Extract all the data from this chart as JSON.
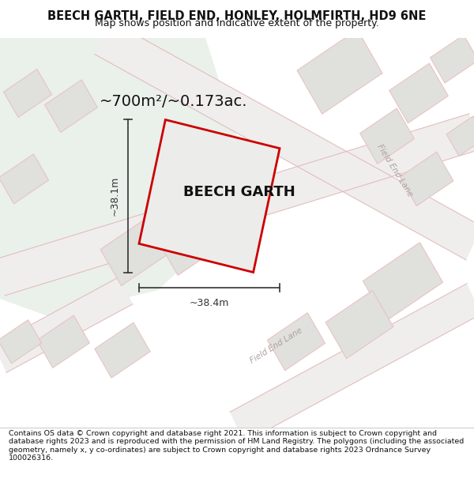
{
  "title_line1": "BEECH GARTH, FIELD END, HONLEY, HOLMFIRTH, HD9 6NE",
  "title_line2": "Map shows position and indicative extent of the property.",
  "area_label": "~700m²/~0.173ac.",
  "property_label": "BEECH GARTH",
  "dim_width": "~38.4m",
  "dim_height": "~38.1m",
  "footer": "Contains OS data © Crown copyright and database right 2021. This information is subject to Crown copyright and database rights 2023 and is reproduced with the permission of HM Land Registry. The polygons (including the associated geometry, namely x, y co-ordinates) are subject to Crown copyright and database rights 2023 Ordnance Survey 100026316.",
  "map_bg": "#f7f7f5",
  "green_color": "#eaf0ea",
  "road_fill": "#f0eded",
  "road_line": "#e0b8b8",
  "building_fill": "#e0e0dc",
  "building_edge": "#e8c0c0",
  "plot_fill": "#ececea",
  "plot_edge": "#cc0000",
  "dim_color": "#333333",
  "text_color": "#111111",
  "road_label_color": "#b0a0a0",
  "title_fontsize": 10.5,
  "subtitle_fontsize": 9.0,
  "area_fontsize": 14.0,
  "prop_fontsize": 13.0,
  "dim_fontsize": 9.0,
  "road_label_fontsize": 7.5,
  "footer_fontsize": 6.8
}
